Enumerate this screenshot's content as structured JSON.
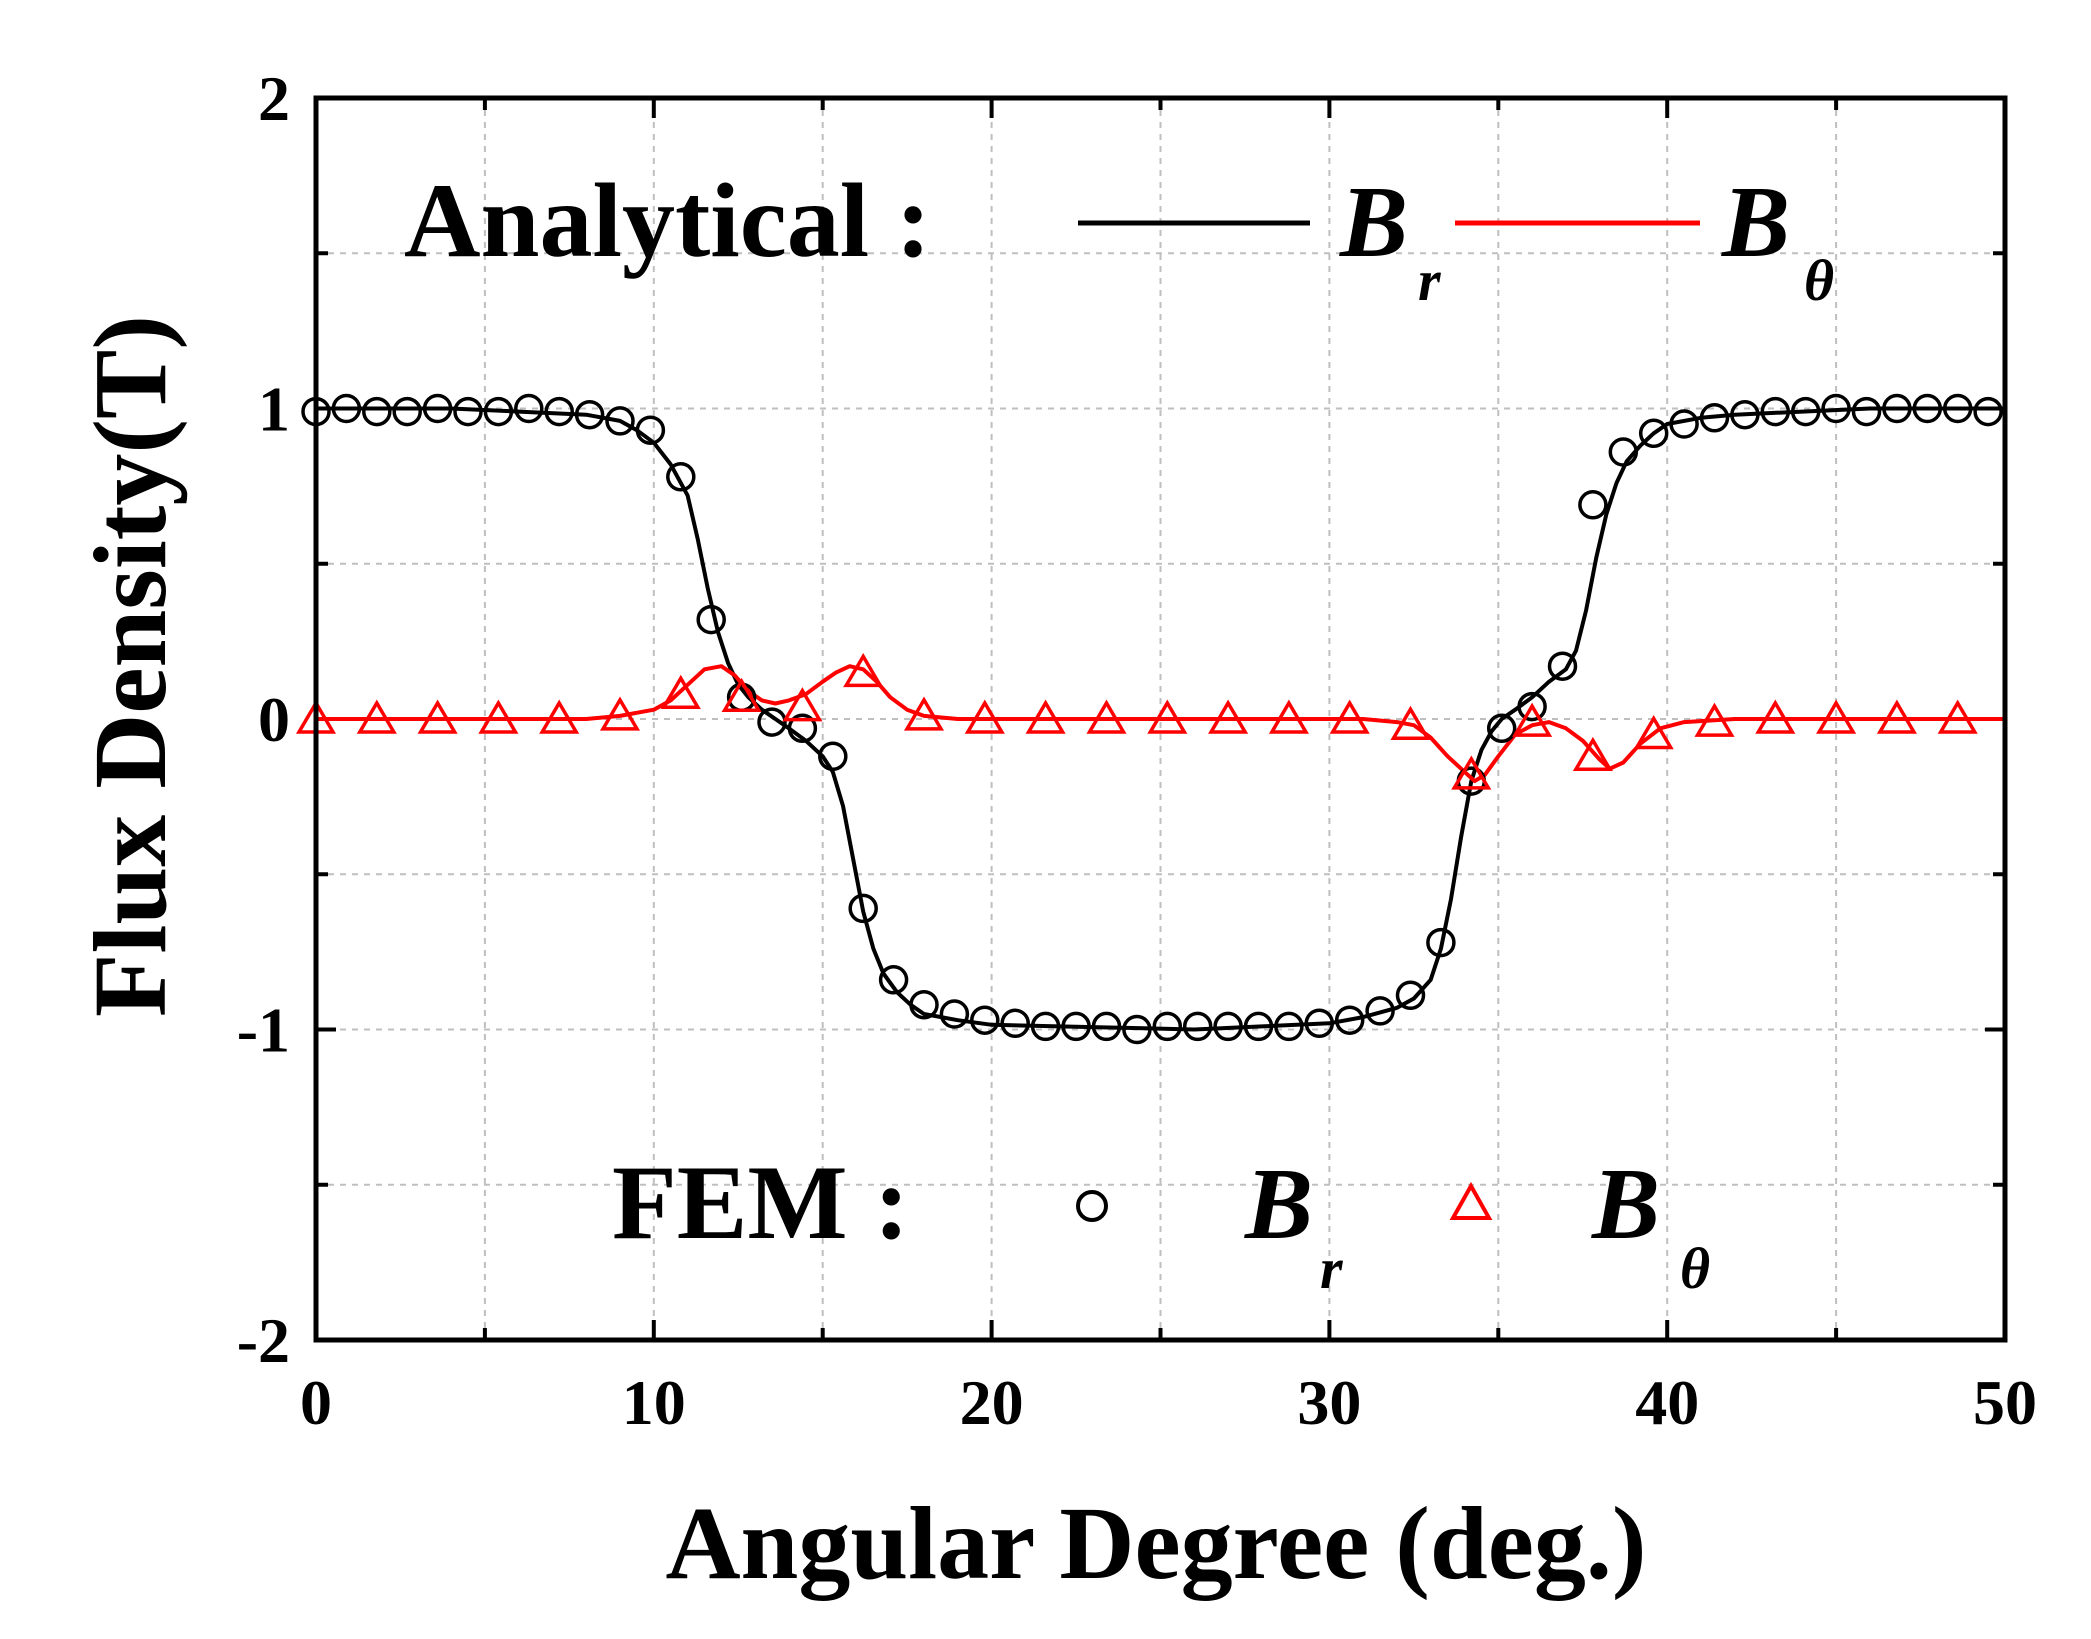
{
  "chart_data": {
    "type": "line",
    "xlabel": "Angular Degree (deg.)",
    "ylabel": "Flux Density(T)",
    "xlim": [
      0,
      50
    ],
    "ylim": [
      -2,
      2
    ],
    "xticks": [
      0,
      10,
      20,
      30,
      40,
      50
    ],
    "yticks": [
      -2,
      -1,
      0,
      1,
      2
    ],
    "x_tick_labels": [
      "0",
      "10",
      "20",
      "30",
      "40",
      "50"
    ],
    "y_tick_labels": [
      "-2",
      "-1",
      "0",
      "1",
      "2"
    ],
    "grid": true,
    "legend": {
      "analytical_label": "Analytical :",
      "fem_label": "FEM :",
      "br_main": "B",
      "br_sub": "r",
      "bt_main": "B",
      "bt_sub": "θ"
    },
    "series": [
      {
        "name": "Analytical B_r",
        "style": "line",
        "color": "#000000",
        "x": [
          0,
          2,
          4,
          6,
          8,
          9,
          9.5,
          10,
          10.5,
          11,
          11.3,
          11.6,
          11.9,
          12.2,
          12.5,
          12.8,
          13.2,
          13.6,
          14,
          14.5,
          15,
          15.3,
          15.6,
          15.9,
          16.2,
          16.5,
          16.8,
          17.2,
          17.6,
          18,
          19,
          20,
          22,
          24,
          26,
          28,
          30,
          31,
          32,
          32.5,
          33,
          33.3,
          33.6,
          33.9,
          34.2,
          34.5,
          34.8,
          35.1,
          35.5,
          36,
          36.5,
          37,
          37.3,
          37.6,
          37.9,
          38.2,
          38.5,
          38.8,
          39.2,
          39.6,
          40,
          41,
          42,
          44,
          46,
          48,
          50
        ],
        "values": [
          1.0,
          1.0,
          1.0,
          0.99,
          0.98,
          0.96,
          0.93,
          0.89,
          0.82,
          0.72,
          0.58,
          0.42,
          0.28,
          0.18,
          0.11,
          0.07,
          0.03,
          0.0,
          -0.03,
          -0.07,
          -0.12,
          -0.17,
          -0.28,
          -0.45,
          -0.62,
          -0.74,
          -0.82,
          -0.88,
          -0.92,
          -0.95,
          -0.97,
          -0.985,
          -0.99,
          -0.995,
          -1.0,
          -0.99,
          -0.98,
          -0.96,
          -0.93,
          -0.9,
          -0.84,
          -0.74,
          -0.58,
          -0.38,
          -0.2,
          -0.1,
          -0.04,
          0.0,
          0.03,
          0.07,
          0.12,
          0.16,
          0.22,
          0.35,
          0.52,
          0.66,
          0.76,
          0.83,
          0.88,
          0.92,
          0.95,
          0.97,
          0.98,
          0.99,
          1.0,
          1.0,
          1.0
        ]
      },
      {
        "name": "Analytical B_θ",
        "style": "line",
        "color": "#ff0000",
        "x": [
          0,
          2,
          4,
          6,
          8,
          9,
          10,
          10.5,
          11,
          11.5,
          12,
          12.4,
          12.8,
          13.2,
          13.6,
          14,
          14.5,
          15,
          15.4,
          15.8,
          16.2,
          16.6,
          17,
          17.5,
          18,
          19,
          20,
          25,
          30,
          31,
          32,
          32.5,
          33,
          33.5,
          34,
          34.3,
          34.6,
          35,
          35.5,
          36,
          36.5,
          37,
          37.5,
          38,
          38.3,
          38.7,
          39.2,
          39.8,
          40.5,
          42,
          44,
          46,
          48,
          50
        ],
        "values": [
          0.0,
          0.0,
          0.0,
          0.0,
          0.0,
          0.01,
          0.03,
          0.06,
          0.11,
          0.16,
          0.17,
          0.14,
          0.09,
          0.06,
          0.05,
          0.06,
          0.08,
          0.12,
          0.15,
          0.17,
          0.16,
          0.12,
          0.07,
          0.03,
          0.01,
          0.0,
          0.0,
          0.0,
          0.0,
          0.0,
          -0.01,
          -0.02,
          -0.06,
          -0.12,
          -0.17,
          -0.2,
          -0.18,
          -0.12,
          -0.05,
          -0.02,
          -0.01,
          -0.03,
          -0.07,
          -0.13,
          -0.16,
          -0.14,
          -0.08,
          -0.03,
          -0.01,
          0.0,
          0.0,
          0.0,
          0.0,
          0.0
        ]
      },
      {
        "name": "FEM B_r",
        "style": "markers",
        "marker": "circle",
        "color": "#000000",
        "x": [
          0,
          0.9,
          1.8,
          2.7,
          3.6,
          4.5,
          5.4,
          6.3,
          7.2,
          8.1,
          9,
          9.9,
          10.8,
          11.7,
          12.6,
          13.5,
          14.4,
          15.3,
          16.2,
          17.1,
          18,
          18.9,
          19.8,
          20.7,
          21.6,
          22.5,
          23.4,
          24.3,
          25.2,
          26.1,
          27,
          27.9,
          28.8,
          29.7,
          30.6,
          31.5,
          32.4,
          33.3,
          34.2,
          35.1,
          36,
          36.9,
          37.8,
          38.7,
          39.6,
          40.5,
          41.4,
          42.3,
          43.2,
          44.1,
          45,
          45.9,
          46.8,
          47.7,
          48.6,
          49.5
        ],
        "values": [
          0.99,
          1.0,
          0.99,
          0.99,
          1.0,
          0.99,
          0.99,
          1.0,
          0.99,
          0.98,
          0.96,
          0.93,
          0.78,
          0.32,
          0.07,
          -0.01,
          -0.03,
          -0.12,
          -0.61,
          -0.84,
          -0.92,
          -0.95,
          -0.97,
          -0.98,
          -0.99,
          -0.99,
          -0.99,
          -1.0,
          -0.99,
          -0.99,
          -0.99,
          -0.99,
          -0.99,
          -0.98,
          -0.97,
          -0.94,
          -0.89,
          -0.72,
          -0.2,
          -0.03,
          0.04,
          0.17,
          0.69,
          0.86,
          0.92,
          0.95,
          0.97,
          0.98,
          0.99,
          0.99,
          1.0,
          0.99,
          1.0,
          1.0,
          1.0,
          0.99
        ]
      },
      {
        "name": "FEM B_θ",
        "style": "markers",
        "marker": "triangle",
        "color": "#ff0000",
        "x": [
          0,
          1.8,
          3.6,
          5.4,
          7.2,
          9,
          10.8,
          12.6,
          14.4,
          16.2,
          18,
          19.8,
          21.6,
          23.4,
          25.2,
          27,
          28.8,
          30.6,
          32.4,
          34.2,
          36,
          37.8,
          39.6,
          41.4,
          43.2,
          45,
          46.8,
          48.6
        ],
        "values": [
          0.0,
          0.0,
          0.0,
          0.0,
          0.0,
          0.01,
          0.08,
          0.07,
          0.04,
          0.15,
          0.01,
          0.0,
          0.0,
          0.0,
          0.0,
          0.0,
          0.0,
          0.0,
          -0.02,
          -0.18,
          -0.01,
          -0.12,
          -0.05,
          -0.01,
          0.0,
          0.0,
          0.0,
          0.0
        ]
      }
    ]
  }
}
